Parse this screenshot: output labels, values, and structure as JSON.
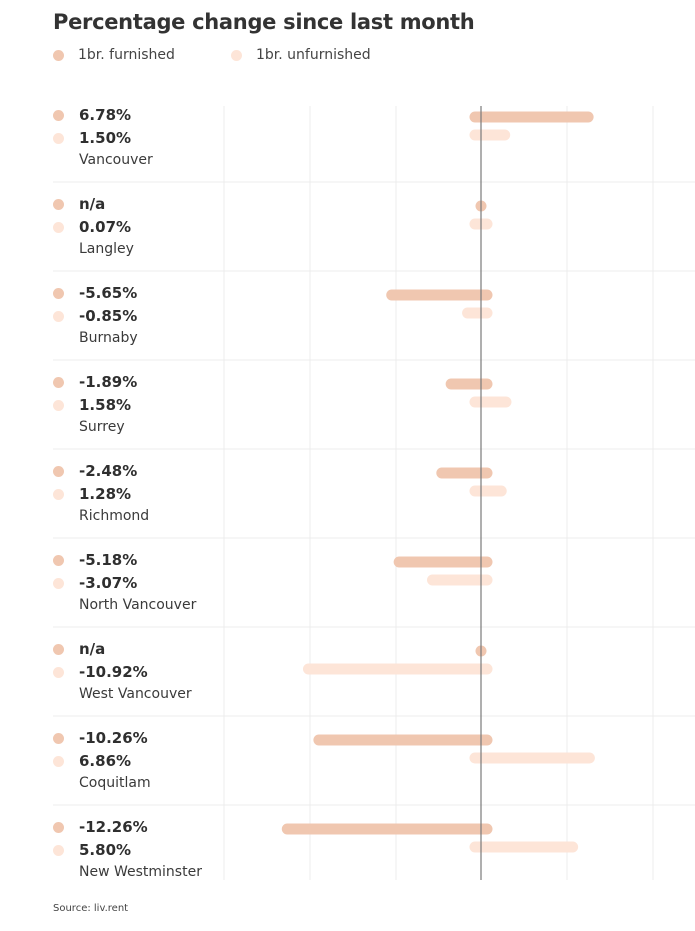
{
  "chart_data": {
    "type": "bar",
    "orientation": "horizontal",
    "title": "Percentage change since last month",
    "series": [
      {
        "name": "1br. furnished",
        "color": "#f0c7b0",
        "values": [
          6.78,
          null,
          -5.65,
          -1.89,
          -2.48,
          -5.18,
          null,
          -10.26,
          -12.26
        ],
        "labels": [
          "6.78%",
          "n/a",
          "-5.65%",
          "-1.89%",
          "-2.48%",
          "-5.18%",
          "n/a",
          "-10.26%",
          "-12.26%"
        ]
      },
      {
        "name": "1br. unfurnished",
        "color": "#fde5d8",
        "values": [
          1.5,
          0.07,
          -0.85,
          1.58,
          1.28,
          -3.07,
          -10.92,
          6.86,
          5.8
        ],
        "labels": [
          "1.50%",
          "0.07%",
          "-0.85%",
          "1.58%",
          "1.28%",
          "-3.07%",
          "-10.92%",
          "6.86%",
          "5.80%"
        ]
      }
    ],
    "categories": [
      "Vancouver",
      "Langley",
      "Burnaby",
      "Surrey",
      "Richmond",
      "North Vancouver",
      "West Vancouver",
      "Coquitlam",
      "New Westminster"
    ],
    "xlim": [
      -20,
      15
    ],
    "grid": true,
    "legend_position": "top-left"
  },
  "source": "Source: liv.rent"
}
